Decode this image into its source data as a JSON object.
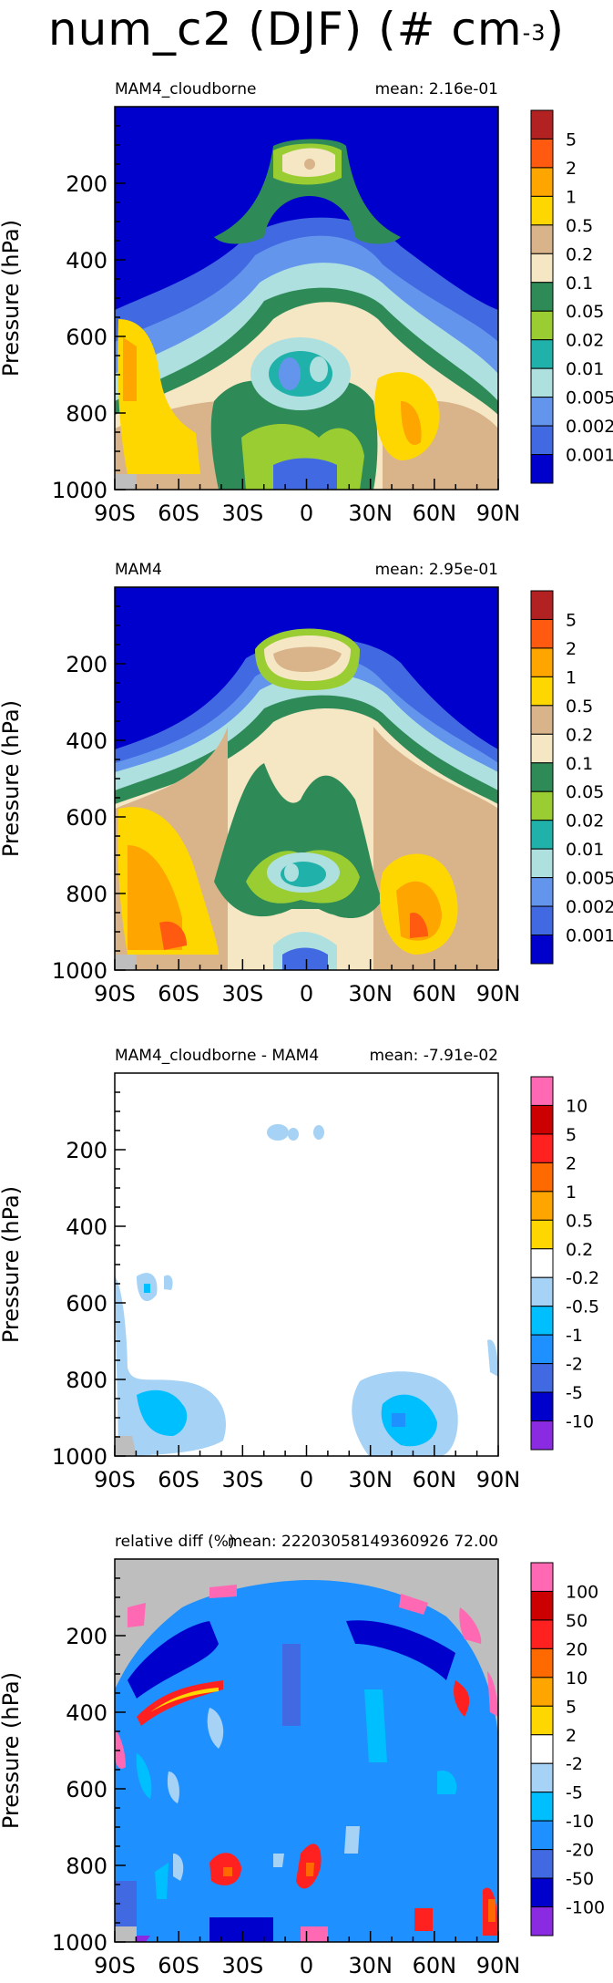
{
  "figure": {
    "title_main": "num_c2 (DJF) (# cm",
    "title_exp": "-3"
  },
  "chart_data": [
    {
      "type": "heatmap",
      "left_label": "MAM4_cloudborne",
      "right_label": "mean: 2.16e-01",
      "ylabel": "Pressure (hPa)",
      "xticks": [
        "90S",
        "60S",
        "30S",
        "0",
        "30N",
        "60N",
        "90N"
      ],
      "yticks": [
        "200",
        "400",
        "600",
        "800",
        "1000"
      ],
      "ylim": [
        1000,
        0
      ],
      "levels": [
        "5",
        "2",
        "1",
        "0.5",
        "0.2",
        "0.1",
        "0.05",
        "0.02",
        "0.01",
        "0.005",
        "0.002",
        "0.001"
      ],
      "colors": [
        "#b22222",
        "#ff5a10",
        "#ffa500",
        "#ffd700",
        "#d9b48a",
        "#f5e6c4",
        "#2e8b57",
        "#9acd32",
        "#20b2aa",
        "#aee0e0",
        "#6495ed",
        "#4169e1",
        "#0000cd"
      ]
    },
    {
      "type": "heatmap",
      "left_label": "MAM4",
      "right_label": "mean: 2.95e-01",
      "ylabel": "Pressure (hPa)",
      "xticks": [
        "90S",
        "60S",
        "30S",
        "0",
        "30N",
        "60N",
        "90N"
      ],
      "yticks": [
        "200",
        "400",
        "600",
        "800",
        "1000"
      ],
      "ylim": [
        1000,
        0
      ],
      "levels": [
        "5",
        "2",
        "1",
        "0.5",
        "0.2",
        "0.1",
        "0.05",
        "0.02",
        "0.01",
        "0.005",
        "0.002",
        "0.001"
      ],
      "colors": [
        "#b22222",
        "#ff5a10",
        "#ffa500",
        "#ffd700",
        "#d9b48a",
        "#f5e6c4",
        "#2e8b57",
        "#9acd32",
        "#20b2aa",
        "#aee0e0",
        "#6495ed",
        "#4169e1",
        "#0000cd"
      ]
    },
    {
      "type": "heatmap",
      "left_label": "MAM4_cloudborne - MAM4",
      "right_label": "mean: -7.91e-02",
      "ylabel": "Pressure (hPa)",
      "xticks": [
        "90S",
        "60S",
        "30S",
        "0",
        "30N",
        "60N",
        "90N"
      ],
      "yticks": [
        "200",
        "400",
        "600",
        "800",
        "1000"
      ],
      "ylim": [
        1000,
        0
      ],
      "levels": [
        "10",
        "5",
        "2",
        "1",
        "0.5",
        "0.2",
        "-0.2",
        "-0.5",
        "-1",
        "-2",
        "-5",
        "-10"
      ],
      "colors": [
        "#ff69b4",
        "#cc0000",
        "#ff2020",
        "#ff6a00",
        "#ffa500",
        "#ffd700",
        "#ffffff",
        "#a6d2f5",
        "#00bfff",
        "#1e90ff",
        "#4169e1",
        "#0000cd",
        "#8a2be2"
      ]
    },
    {
      "type": "heatmap",
      "left_label": "relative diff (%)",
      "right_label": "mean: 22203058149360926 72.00",
      "ylabel": "Pressure (hPa)",
      "xticks": [
        "90S",
        "60S",
        "30S",
        "0",
        "30N",
        "60N",
        "90N"
      ],
      "yticks": [
        "200",
        "400",
        "600",
        "800",
        "1000"
      ],
      "ylim": [
        1000,
        0
      ],
      "levels": [
        "100",
        "50",
        "20",
        "10",
        "5",
        "2",
        "-2",
        "-5",
        "-10",
        "-20",
        "-50",
        "-100"
      ],
      "colors": [
        "#ff69b4",
        "#cc0000",
        "#ff2020",
        "#ff6a00",
        "#ffa500",
        "#ffd700",
        "#ffffff",
        "#a6d2f5",
        "#00bfff",
        "#1e90ff",
        "#4169e1",
        "#0000cd",
        "#8a2be2"
      ]
    }
  ]
}
